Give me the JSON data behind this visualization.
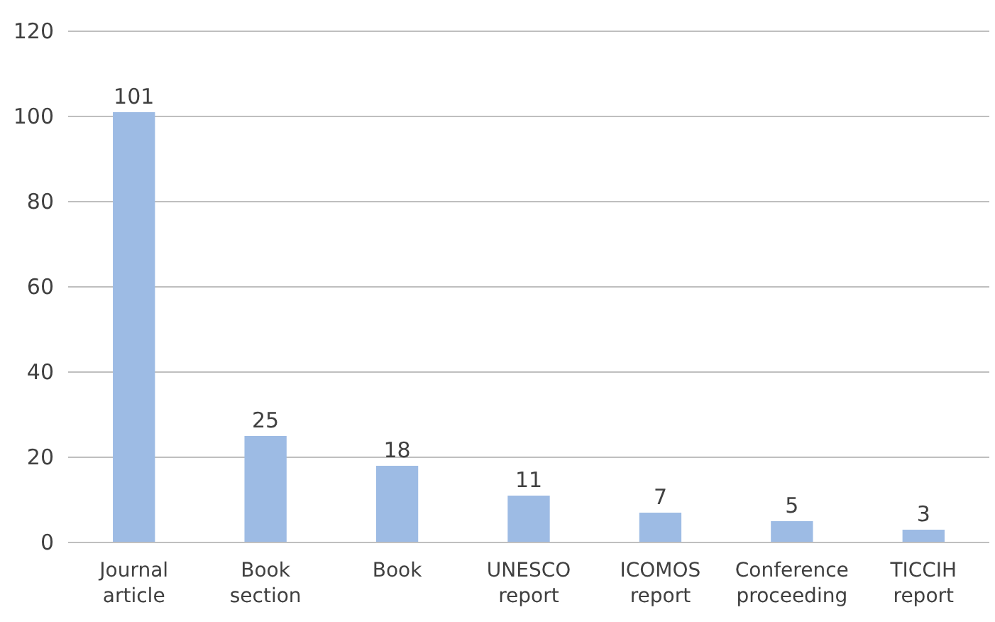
{
  "chart_data": {
    "type": "bar",
    "categories": [
      "Journal article",
      "Book section",
      "Book",
      "UNESCO report",
      "ICOMOS report",
      "Conference proceeding",
      "TICCIH report"
    ],
    "values": [
      101,
      25,
      18,
      11,
      7,
      5,
      3
    ],
    "color": "#9dbbe4",
    "ylim": [
      0,
      120
    ],
    "yticks": [
      0,
      20,
      40,
      60,
      80,
      100,
      120
    ],
    "grid": "y",
    "data_labels": true
  }
}
